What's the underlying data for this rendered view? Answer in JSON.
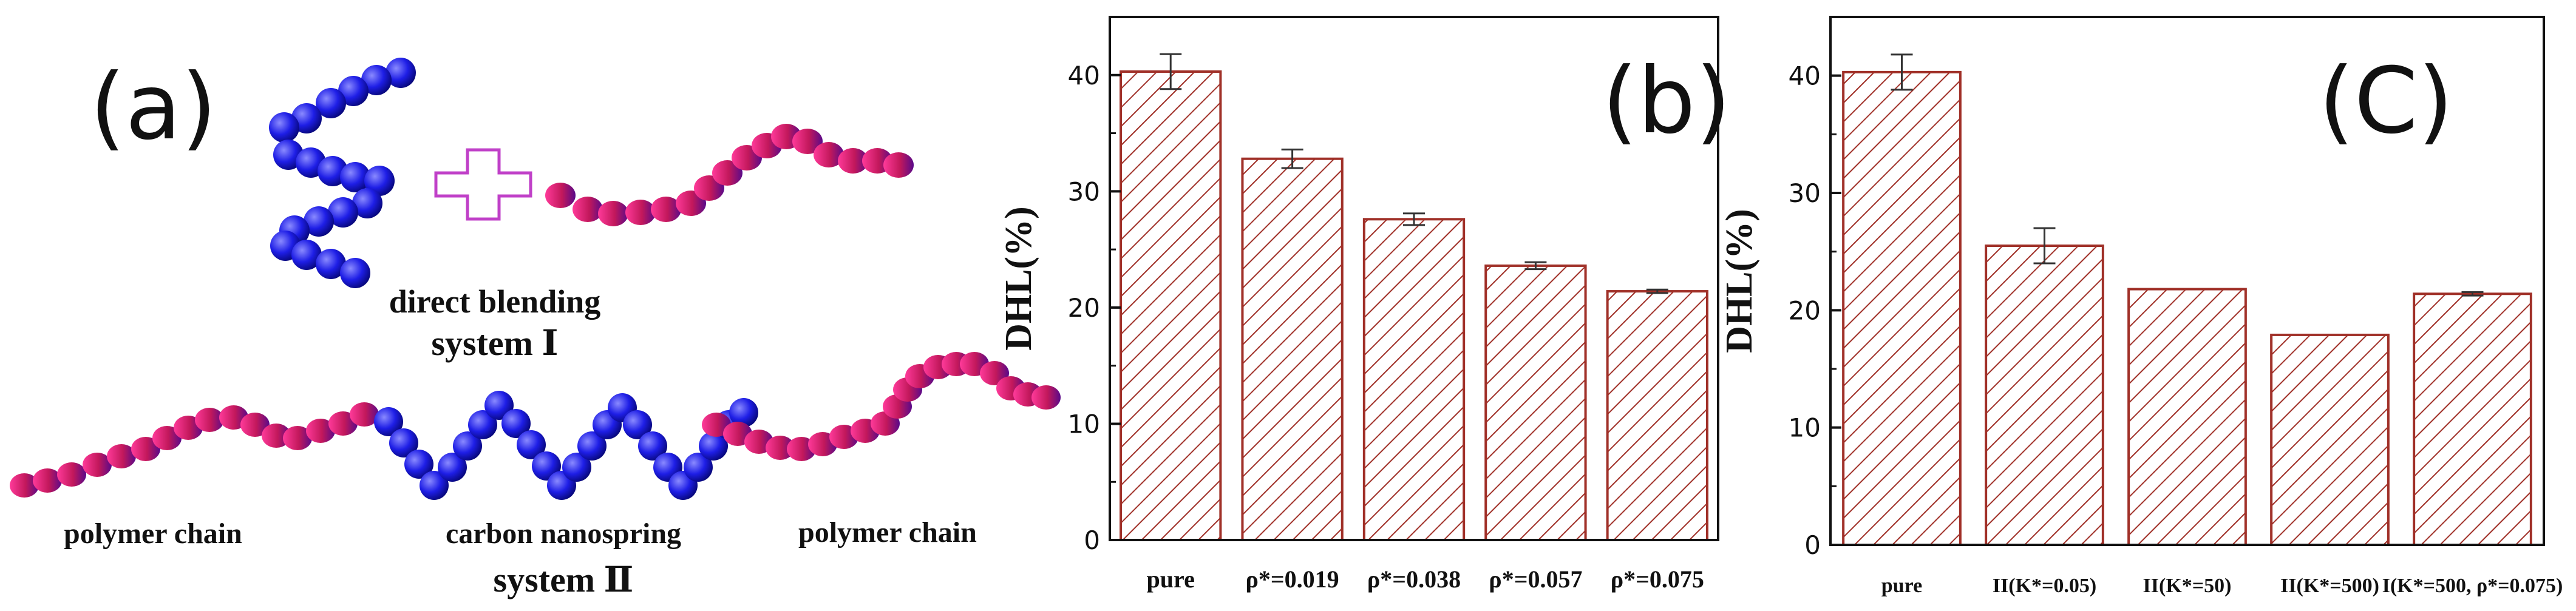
{
  "panel_a": {
    "label": "(a)",
    "system1_line1": "direct blending",
    "system1_line2": "system Ⅰ",
    "label_left": "polymer chain",
    "label_mid": "carbon nanospring",
    "label_right": "polymer chain",
    "system2": "system Ⅱ",
    "colors": {
      "bead_blue": "#1e1ee6",
      "bead_pink": "#d81b60",
      "plus_outline": "#c040c8"
    }
  },
  "chart_data": [
    {
      "type": "bar",
      "panel_label": "(b)",
      "ylabel": "DHL(%)",
      "ylim": [
        0,
        45
      ],
      "yticks": [
        0,
        10,
        20,
        30,
        40
      ],
      "categories": [
        "pure",
        "ρ*=0.019",
        "ρ*=0.038",
        "ρ*=0.057",
        "ρ*=0.075"
      ],
      "values": [
        40.3,
        32.8,
        27.6,
        23.6,
        21.4
      ],
      "errors": [
        1.5,
        0.8,
        0.5,
        0.3,
        0.15
      ],
      "hatch_color": "#a03028",
      "grid": false
    },
    {
      "type": "bar",
      "panel_label": "(C)",
      "ylabel": "DHL(%)",
      "ylim": [
        0,
        45
      ],
      "yticks": [
        0,
        10,
        20,
        30,
        40
      ],
      "categories": [
        "pure",
        "II(K*=0.05)",
        "II(K*=50)",
        "II(K*=500)",
        "I(K*=500, ρ*=0.075)"
      ],
      "values": [
        40.3,
        25.5,
        21.8,
        17.9,
        21.4
      ],
      "errors": [
        1.5,
        1.5,
        0,
        0,
        0.15
      ],
      "hatch_color": "#a03028",
      "grid": false
    }
  ]
}
